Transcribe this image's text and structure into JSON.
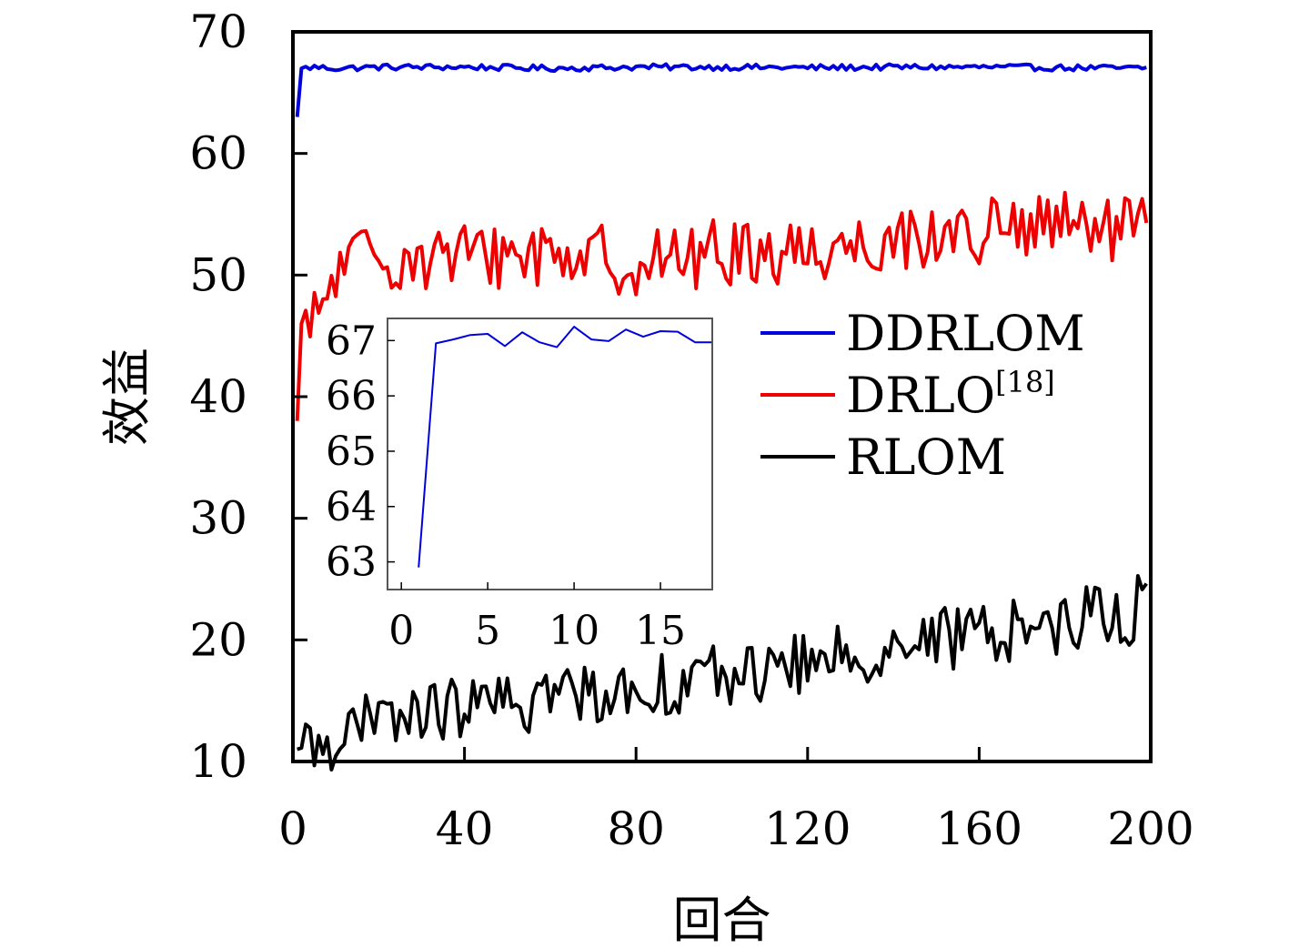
{
  "chart_data": [
    {
      "type": "line",
      "title": "",
      "xlabel": "回合",
      "ylabel": "效益",
      "xlim": [
        0,
        200
      ],
      "ylim": [
        10,
        70
      ],
      "xticks": [
        0,
        40,
        80,
        120,
        160,
        200
      ],
      "yticks": [
        10,
        20,
        30,
        40,
        50,
        60,
        70
      ],
      "xtick_labels": [
        "0",
        "40",
        "80",
        "120",
        "160",
        "200"
      ],
      "ytick_labels": [
        "10",
        "20",
        "30",
        "40",
        "50",
        "60",
        "70"
      ],
      "grid": false,
      "legend_position": "center-right",
      "series": [
        {
          "name": "DDRLOM",
          "color": "#0000dd",
          "anchors": [
            [
              1,
              63
            ],
            [
              2,
              67
            ],
            [
              5,
              67.1
            ],
            [
              10,
              67
            ],
            [
              20,
              67.1
            ],
            [
              40,
              67.1
            ],
            [
              60,
              67
            ],
            [
              80,
              67.1
            ],
            [
              100,
              67.1
            ],
            [
              120,
              67.05
            ],
            [
              140,
              67.1
            ],
            [
              160,
              67.1
            ],
            [
              180,
              67.05
            ],
            [
              200,
              67
            ]
          ],
          "noise": 0.25
        },
        {
          "name": "DRLO",
          "name_superscript": "[18]",
          "color": "#ee0000",
          "anchors": [
            [
              1,
              38
            ],
            [
              2,
              46
            ],
            [
              4,
              45
            ],
            [
              6,
              47
            ],
            [
              10,
              50
            ],
            [
              15,
              51.5
            ],
            [
              25,
              51.5
            ],
            [
              40,
              51.5
            ],
            [
              60,
              52
            ],
            [
              80,
              51
            ],
            [
              100,
              51.8
            ],
            [
              120,
              52
            ],
            [
              140,
              53
            ],
            [
              160,
              53.5
            ],
            [
              180,
              54
            ],
            [
              200,
              53.5
            ]
          ],
          "noise": 2.8
        },
        {
          "name": "RLOM",
          "color": "#000000",
          "anchors": [
            [
              1,
              11
            ],
            [
              10,
              12
            ],
            [
              20,
              13.2
            ],
            [
              30,
              14
            ],
            [
              40,
              14.5
            ],
            [
              50,
              14.5
            ],
            [
              60,
              15.5
            ],
            [
              80,
              16
            ],
            [
              100,
              17
            ],
            [
              120,
              18
            ],
            [
              140,
              19.5
            ],
            [
              160,
              20.5
            ],
            [
              180,
              21.5
            ],
            [
              190,
              22.5
            ],
            [
              193,
              21.2
            ],
            [
              196,
              22
            ],
            [
              197,
              24
            ],
            [
              200,
              24
            ]
          ],
          "noise": 2.6
        }
      ]
    },
    {
      "type": "line",
      "title": "",
      "xlabel": "",
      "ylabel": "",
      "xlim": [
        -0.8,
        18
      ],
      "ylim": [
        62.5,
        67.4
      ],
      "xticks": [
        0,
        5,
        10,
        15
      ],
      "yticks": [
        63,
        64,
        65,
        66,
        67
      ],
      "xtick_labels": [
        "0",
        "5",
        "10",
        "15"
      ],
      "ytick_labels": [
        "63",
        "64",
        "65",
        "66",
        "67"
      ],
      "grid": false,
      "series": [
        {
          "color": "#0000dd",
          "x": [
            1,
            2,
            3,
            4,
            5,
            6,
            7,
            8,
            9,
            10,
            11,
            12,
            13,
            14,
            15,
            16,
            17,
            18
          ],
          "values": [
            62.9,
            66.95,
            67.02,
            67.1,
            67.12,
            66.9,
            67.15,
            66.97,
            66.88,
            67.25,
            67.02,
            66.99,
            67.2,
            67.07,
            67.17,
            67.16,
            66.97,
            66.97
          ]
        }
      ]
    }
  ]
}
